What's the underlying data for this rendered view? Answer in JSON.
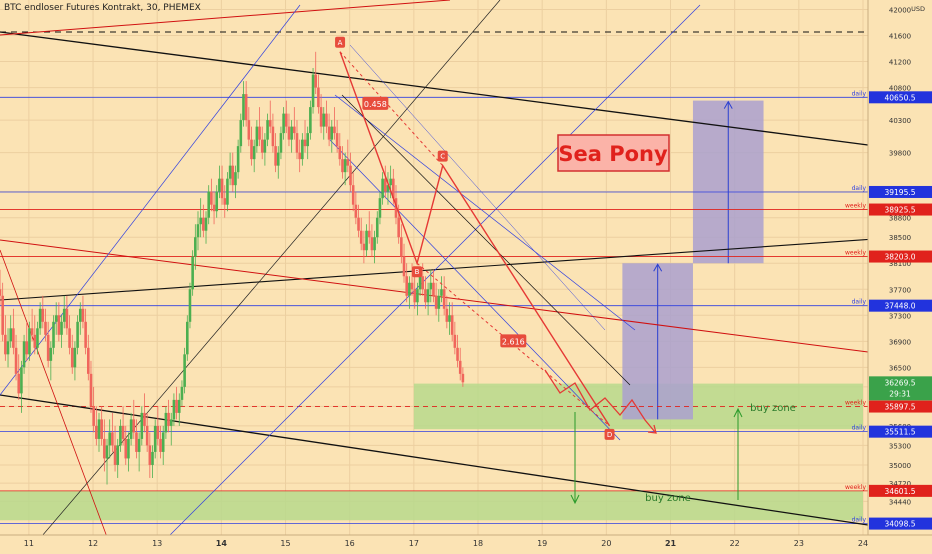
{
  "header": {
    "title": "BTC endloser Futures Kontrakt, 30, PHEMEX"
  },
  "colors": {
    "background": "#fbe3b4",
    "grid": "#eccfa0",
    "candle_up": "#4caf50",
    "candle_down": "#f0665c",
    "zone": "#b7d98c",
    "projection_box": "#aaa0cf",
    "pattern_line": "#e53935",
    "channel_blue": "#2f3fe0",
    "daily_label": "#2233dd",
    "weekly_label": "#e0221c",
    "current_price": "#3aa24a"
  },
  "chart_data": {
    "type": "candlestick",
    "currency": "USD",
    "x_ticks": [
      "11",
      "12",
      "13",
      "14",
      "15",
      "16",
      "17",
      "18",
      "19",
      "20",
      "21",
      "22",
      "23",
      "24"
    ],
    "y_ticks": [
      34440,
      34720,
      35000,
      35300,
      35600,
      35900,
      36200,
      36500,
      36900,
      37300,
      37700,
      38100,
      38500,
      38800,
      39200,
      39800,
      40300,
      40800,
      41200,
      41600,
      42000
    ],
    "ylim": [
      34000,
      42100
    ],
    "grid": true,
    "levels": [
      {
        "price": 40650.5,
        "label": "40650.5",
        "tag": "daily",
        "kind": "daily"
      },
      {
        "price": 39195.5,
        "label": "39195.5",
        "tag": "daily",
        "kind": "daily"
      },
      {
        "price": 38925.5,
        "label": "38925.5",
        "tag": "weekly",
        "kind": "weekly"
      },
      {
        "price": 38203.0,
        "label": "38203.0",
        "tag": "weekly",
        "kind": "weekly"
      },
      {
        "price": 37448.0,
        "label": "37448.0",
        "tag": "daily",
        "kind": "daily"
      },
      {
        "price": 35897.5,
        "label": "35897.5",
        "tag": "weekly",
        "kind": "weekly"
      },
      {
        "price": 35511.5,
        "label": "35511.5",
        "tag": "daily",
        "kind": "daily"
      },
      {
        "price": 34601.5,
        "label": "34601.5",
        "tag": "weekly",
        "kind": "weekly"
      },
      {
        "price": 34098.5,
        "label": "34098.5",
        "tag": "daily",
        "kind": "daily"
      }
    ],
    "current_price": {
      "price": 36269.5,
      "label": "36269.5",
      "countdown": "29:31"
    },
    "pattern_points": [
      {
        "label": "A",
        "day": 15.85,
        "price": 41350
      },
      {
        "label": "B",
        "day": 17.05,
        "price": 38100
      },
      {
        "label": "C",
        "day": 17.45,
        "price": 39600
      },
      {
        "label": "D",
        "day": 20.05,
        "price": 35600
      }
    ],
    "ratio_labels": [
      {
        "text": "0.458",
        "day": 16.4,
        "price": 40550
      },
      {
        "text": "2.616",
        "day": 18.55,
        "price": 36900
      }
    ],
    "buy_zones": [
      {
        "label": "buy zone",
        "from_day": 17.0,
        "to_day": 24.0,
        "low": 35550,
        "high": 36250
      },
      {
        "label": "buy zone",
        "from_day": 10.5,
        "to_day": 24.0,
        "low": 34150,
        "high": 34600
      }
    ],
    "projection_boxes": [
      {
        "from_day": 20.25,
        "to_day": 21.35,
        "low": 35700,
        "high": 38100
      },
      {
        "from_day": 21.35,
        "to_day": 22.45,
        "low": 38100,
        "high": 40600
      }
    ],
    "annotation": {
      "text": "Sea Pony",
      "day": 19.5,
      "price": 39500
    },
    "candles": {
      "start_day": 10.55,
      "step_days": 0.0417,
      "ohlc": [
        [
          37700,
          38000,
          37450,
          37600
        ],
        [
          37600,
          37800,
          36900,
          37000
        ],
        [
          37000,
          37300,
          36600,
          36700
        ],
        [
          36700,
          37100,
          36500,
          36900
        ],
        [
          36900,
          37300,
          36800,
          37100
        ],
        [
          37100,
          37400,
          36700,
          36800
        ],
        [
          36800,
          37000,
          36300,
          36400
        ],
        [
          36400,
          36700,
          36000,
          36100
        ],
        [
          36100,
          36600,
          35800,
          36500
        ],
        [
          36500,
          37000,
          36400,
          36900
        ],
        [
          36900,
          37200,
          36600,
          36700
        ],
        [
          36700,
          37200,
          36600,
          37100
        ],
        [
          37100,
          37400,
          36900,
          37000
        ],
        [
          37000,
          37300,
          36700,
          36800
        ],
        [
          36800,
          37200,
          36700,
          37100
        ],
        [
          37100,
          37500,
          37000,
          37400
        ],
        [
          37400,
          37600,
          37100,
          37200
        ],
        [
          37200,
          37400,
          36900,
          37000
        ],
        [
          37000,
          37200,
          36500,
          36600
        ],
        [
          36600,
          36900,
          36300,
          36800
        ],
        [
          36800,
          37300,
          36700,
          37200
        ],
        [
          37200,
          37500,
          37000,
          37300
        ],
        [
          37300,
          37500,
          36900,
          37000
        ],
        [
          37000,
          37300,
          36800,
          37200
        ],
        [
          37200,
          37600,
          37100,
          37400
        ],
        [
          37400,
          37600,
          37000,
          37100
        ],
        [
          37100,
          37300,
          36700,
          36800
        ],
        [
          36800,
          37000,
          36400,
          36500
        ],
        [
          36500,
          36900,
          36300,
          36800
        ],
        [
          36800,
          37300,
          36700,
          37200
        ],
        [
          37200,
          37500,
          37000,
          37400
        ],
        [
          37400,
          37600,
          37100,
          37200
        ],
        [
          37200,
          37400,
          36700,
          36800
        ],
        [
          36800,
          37000,
          36300,
          36400
        ],
        [
          36400,
          36600,
          35800,
          35900
        ],
        [
          35900,
          36200,
          35500,
          35600
        ],
        [
          35600,
          35900,
          35300,
          35400
        ],
        [
          35400,
          35800,
          35200,
          35700
        ],
        [
          35700,
          35900,
          35300,
          35400
        ],
        [
          35400,
          35700,
          34900,
          35100
        ],
        [
          35100,
          35400,
          34700,
          35300
        ],
        [
          35300,
          35700,
          35100,
          35500
        ],
        [
          35500,
          35800,
          35200,
          35300
        ],
        [
          35300,
          35600,
          34900,
          35000
        ],
        [
          35000,
          35400,
          34800,
          35300
        ],
        [
          35300,
          35700,
          35200,
          35600
        ],
        [
          35600,
          35900,
          35300,
          35400
        ],
        [
          35400,
          35600,
          35000,
          35100
        ],
        [
          35100,
          35500,
          34900,
          35400
        ],
        [
          35400,
          35800,
          35300,
          35700
        ],
        [
          35700,
          36000,
          35400,
          35500
        ],
        [
          35500,
          35700,
          35100,
          35200
        ],
        [
          35200,
          35500,
          34900,
          35400
        ],
        [
          35400,
          35900,
          35300,
          35800
        ],
        [
          35800,
          36100,
          35500,
          35600
        ],
        [
          35600,
          35800,
          35200,
          35300
        ],
        [
          35300,
          35500,
          34800,
          35000
        ],
        [
          35000,
          35300,
          34800,
          35200
        ],
        [
          35200,
          35700,
          35100,
          35600
        ],
        [
          35600,
          35900,
          35300,
          35400
        ],
        [
          35400,
          35600,
          35100,
          35200
        ],
        [
          35200,
          35600,
          35000,
          35500
        ],
        [
          35500,
          35900,
          35400,
          35800
        ],
        [
          35800,
          36000,
          35500,
          35600
        ],
        [
          35600,
          35800,
          35300,
          35700
        ],
        [
          35700,
          36100,
          35600,
          36000
        ],
        [
          36000,
          36200,
          35700,
          35800
        ],
        [
          35800,
          36100,
          35600,
          36000
        ],
        [
          36000,
          36300,
          35900,
          36200
        ],
        [
          36200,
          36800,
          36100,
          36700
        ],
        [
          36700,
          37300,
          36600,
          37200
        ],
        [
          37200,
          37800,
          37100,
          37700
        ],
        [
          37700,
          38300,
          37600,
          38200
        ],
        [
          38200,
          38700,
          38000,
          38500
        ],
        [
          38500,
          38900,
          38300,
          38700
        ],
        [
          38700,
          39100,
          38500,
          38800
        ],
        [
          38800,
          39000,
          38500,
          38600
        ],
        [
          38600,
          38900,
          38400,
          38800
        ],
        [
          38800,
          39300,
          38700,
          39200
        ],
        [
          39200,
          39400,
          38900,
          39000
        ],
        [
          39000,
          39200,
          38700,
          38900
        ],
        [
          38900,
          39300,
          38800,
          39200
        ],
        [
          39200,
          39600,
          39100,
          39400
        ],
        [
          39400,
          39600,
          39000,
          39100
        ],
        [
          39100,
          39300,
          38800,
          39000
        ],
        [
          39000,
          39500,
          38900,
          39400
        ],
        [
          39400,
          39800,
          39300,
          39600
        ],
        [
          39600,
          39800,
          39200,
          39300
        ],
        [
          39300,
          39600,
          39100,
          39500
        ],
        [
          39500,
          40000,
          39400,
          39900
        ],
        [
          39900,
          40400,
          39800,
          40300
        ],
        [
          40300,
          40900,
          40200,
          40700
        ],
        [
          40700,
          40900,
          40200,
          40300
        ],
        [
          40300,
          40500,
          39900,
          40000
        ],
        [
          40000,
          40200,
          39600,
          39700
        ],
        [
          39700,
          40000,
          39500,
          39900
        ],
        [
          39900,
          40300,
          39800,
          40200
        ],
        [
          40200,
          40500,
          39900,
          40000
        ],
        [
          40000,
          40200,
          39700,
          39800
        ],
        [
          39800,
          40100,
          39600,
          40000
        ],
        [
          40000,
          40400,
          39900,
          40300
        ],
        [
          40300,
          40600,
          40100,
          40200
        ],
        [
          40200,
          40400,
          39800,
          39900
        ],
        [
          39900,
          40100,
          39500,
          39600
        ],
        [
          39600,
          39900,
          39400,
          39800
        ],
        [
          39800,
          40200,
          39700,
          40100
        ],
        [
          40100,
          40500,
          40000,
          40400
        ],
        [
          40400,
          40600,
          40100,
          40200
        ],
        [
          40200,
          40400,
          39900,
          40000
        ],
        [
          40000,
          40300,
          39800,
          40200
        ],
        [
          40200,
          40500,
          40000,
          40100
        ],
        [
          40100,
          40300,
          39700,
          39800
        ],
        [
          39800,
          40000,
          39500,
          39700
        ],
        [
          39700,
          40100,
          39600,
          40000
        ],
        [
          40000,
          40300,
          39800,
          39900
        ],
        [
          39900,
          40200,
          39700,
          40100
        ],
        [
          40100,
          40600,
          40000,
          40500
        ],
        [
          40500,
          41100,
          40400,
          41000
        ],
        [
          41000,
          41350,
          40700,
          40800
        ],
        [
          40800,
          41000,
          40400,
          40500
        ],
        [
          40500,
          40700,
          40100,
          40200
        ],
        [
          40200,
          40500,
          40000,
          40400
        ],
        [
          40400,
          40600,
          40100,
          40200
        ],
        [
          40200,
          40400,
          39900,
          40000
        ],
        [
          40000,
          40300,
          39800,
          40200
        ],
        [
          40200,
          40500,
          40000,
          40100
        ],
        [
          40100,
          40300,
          39800,
          39900
        ],
        [
          39900,
          40100,
          39600,
          39700
        ],
        [
          39700,
          39900,
          39400,
          39500
        ],
        [
          39500,
          39800,
          39300,
          39700
        ],
        [
          39700,
          40000,
          39500,
          39600
        ],
        [
          39600,
          39800,
          39200,
          39300
        ],
        [
          39300,
          39500,
          38900,
          39000
        ],
        [
          39000,
          39200,
          38700,
          38800
        ],
        [
          38800,
          39000,
          38500,
          38600
        ],
        [
          38600,
          38800,
          38300,
          38400
        ],
        [
          38400,
          38600,
          38100,
          38300
        ],
        [
          38300,
          38700,
          38200,
          38600
        ],
        [
          38600,
          38900,
          38400,
          38500
        ],
        [
          38500,
          38700,
          38200,
          38300
        ],
        [
          38300,
          38600,
          38100,
          38500
        ],
        [
          38500,
          38900,
          38400,
          38800
        ],
        [
          38800,
          39200,
          38700,
          39100
        ],
        [
          39100,
          39500,
          39000,
          39400
        ],
        [
          39400,
          39600,
          39100,
          39200
        ],
        [
          39200,
          39500,
          39000,
          39300
        ],
        [
          39300,
          39600,
          39100,
          39400
        ],
        [
          39400,
          39550,
          39000,
          39100
        ],
        [
          39100,
          39300,
          38700,
          38800
        ],
        [
          38800,
          39000,
          38400,
          38500
        ],
        [
          38500,
          38700,
          38100,
          38200
        ],
        [
          38200,
          38400,
          37800,
          37900
        ],
        [
          37900,
          38100,
          37500,
          37600
        ],
        [
          37600,
          37900,
          37400,
          37800
        ],
        [
          37800,
          38100,
          37600,
          37700
        ],
        [
          37700,
          37900,
          37400,
          37500
        ],
        [
          37500,
          37800,
          37300,
          37700
        ],
        [
          37700,
          38000,
          37600,
          37900
        ],
        [
          37900,
          38100,
          37600,
          37700
        ],
        [
          37700,
          37900,
          37400,
          37500
        ],
        [
          37500,
          37800,
          37300,
          37700
        ],
        [
          37700,
          38000,
          37500,
          37800
        ],
        [
          37800,
          38000,
          37500,
          37600
        ],
        [
          37600,
          37800,
          37300,
          37400
        ],
        [
          37400,
          37700,
          37200,
          37600
        ],
        [
          37600,
          37900,
          37500,
          37700
        ],
        [
          37700,
          37900,
          37300,
          37400
        ],
        [
          37400,
          37600,
          37100,
          37200
        ],
        [
          37200,
          37500,
          37000,
          37300
        ],
        [
          37300,
          37500,
          36900,
          37000
        ],
        [
          37000,
          37200,
          36700,
          36800
        ],
        [
          36800,
          37000,
          36500,
          36600
        ],
        [
          36600,
          36800,
          36300,
          36400
        ],
        [
          36400,
          36500,
          36200,
          36270
        ]
      ]
    }
  }
}
